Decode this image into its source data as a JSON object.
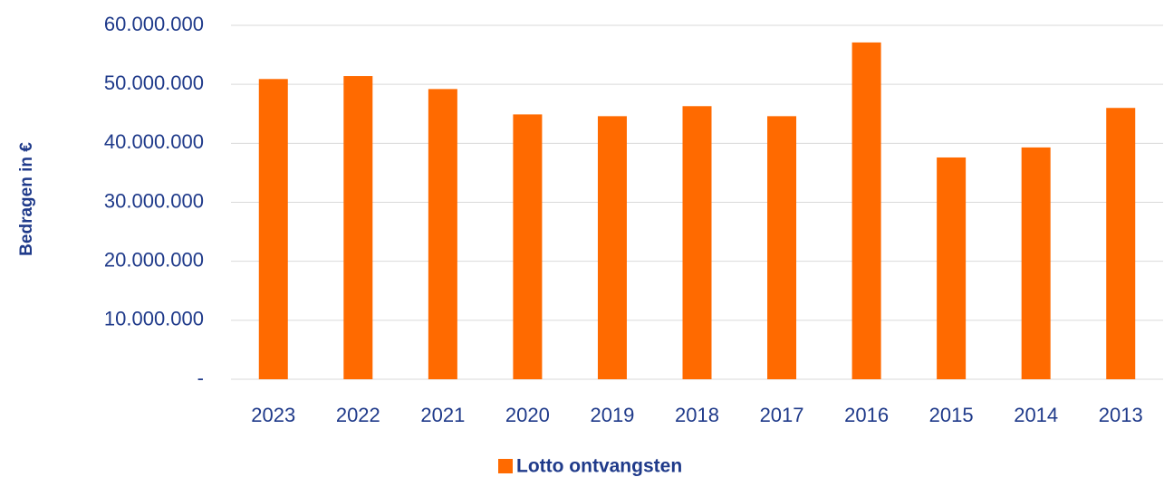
{
  "chart_data": {
    "type": "bar",
    "y_axis_label": "Bedragen in €",
    "categories": [
      "2023",
      "2022",
      "2021",
      "2020",
      "2019",
      "2018",
      "2017",
      "2016",
      "2015",
      "2014",
      "2013"
    ],
    "series": [
      {
        "name": "Lotto ontvangsten",
        "color": "#ff6a00",
        "values": [
          50900000,
          51400000,
          49200000,
          44900000,
          44600000,
          46300000,
          44600000,
          57100000,
          37600000,
          39300000,
          46000000
        ]
      }
    ],
    "ylim": [
      0,
      60000000
    ],
    "yticks": [
      {
        "value": 0,
        "label": "-"
      },
      {
        "value": 10000000,
        "label": "10.000.000"
      },
      {
        "value": 20000000,
        "label": "20.000.000"
      },
      {
        "value": 30000000,
        "label": "30.000.000"
      },
      {
        "value": 40000000,
        "label": "40.000.000"
      },
      {
        "value": 50000000,
        "label": "50.000.000"
      },
      {
        "value": 60000000,
        "label": "60.000.000"
      }
    ],
    "grid": true
  }
}
